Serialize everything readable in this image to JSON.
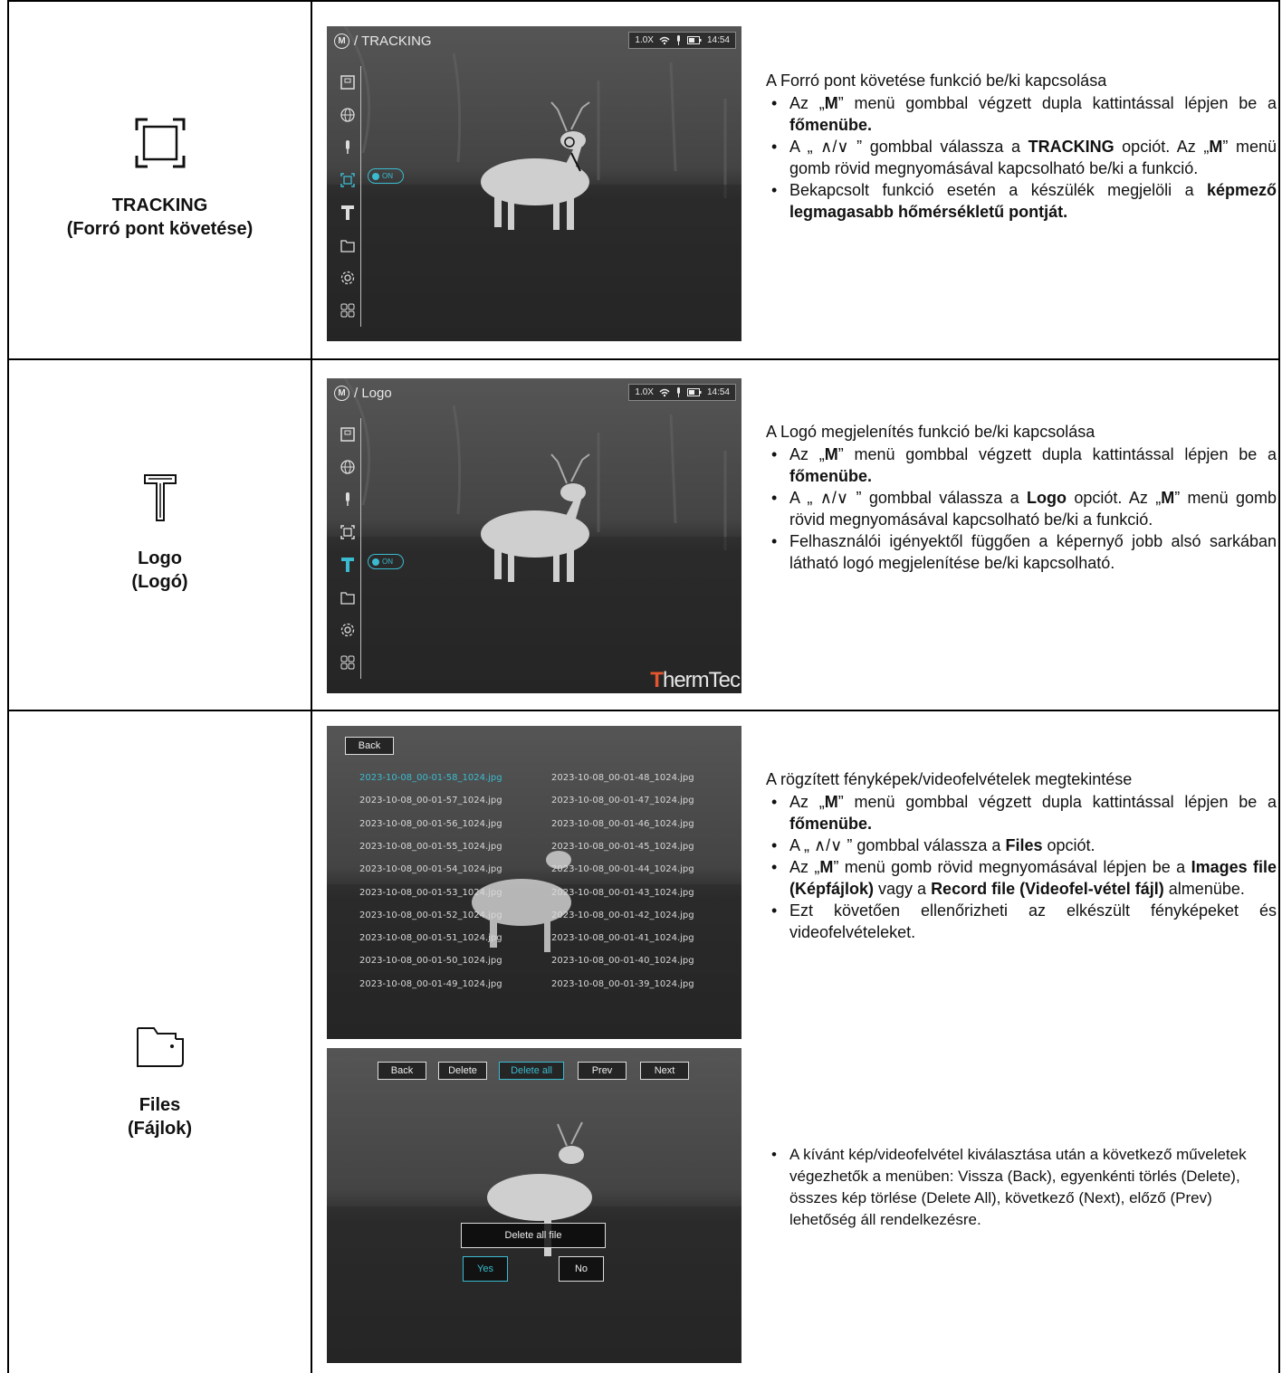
{
  "colors": {
    "accent": "#3bbbd0",
    "border": "#000000"
  },
  "rows": [
    {
      "icon": "tracking-icon",
      "label_line1": "TRACKING",
      "label_line2": "(Forró pont követése)",
      "screen": {
        "title": "/ TRACKING",
        "m_glyph": "M",
        "zoom": "1.0X",
        "time": "14:54",
        "toggle": "ON"
      },
      "heading": "A Forró pont követése funkció be/ki kapcsolása",
      "bullets": [
        [
          "Az „",
          "M",
          "” menü gombbal végzett dupla kattintással lépjen be a ",
          "főmenübe."
        ],
        [
          "A „ ∧/∨ ” gombbal válassza a ",
          "TRACKING",
          " opciót. Az „",
          "M",
          "” menü gomb rövid megnyomásával kapcsolható be/ki a funkció."
        ],
        [
          "Bekapcsolt funkció esetén a készülék megjelöli a ",
          "képmező legmagasabb hőmérsékletű pontját."
        ]
      ]
    },
    {
      "icon": "logo-icon",
      "label_line1": "Logo",
      "label_line2": "(Logó)",
      "screen": {
        "title": "/ Logo",
        "m_glyph": "M",
        "zoom": "1.0X",
        "time": "14:54",
        "toggle": "ON",
        "watermark_a": "T",
        "watermark_b": "hermTec"
      },
      "heading": "A Logó megjelenítés funkció be/ki kapcsolása",
      "bullets": [
        [
          "Az „",
          "M",
          "” menü gombbal végzett dupla kattintással lépjen be a ",
          "főmenübe."
        ],
        [
          "A „ ∧/∨ ” gombbal válassza a ",
          "Logo",
          " opciót. Az „",
          "M",
          "” menü gomb rövid megnyomásával kapcsolható be/ki a funkció."
        ],
        [
          "Felhasználói igényektől függően a képernyő jobb alsó sarkában látható logó megjelenítése be/ki kapcsolható."
        ]
      ]
    },
    {
      "icon": "folder-icon",
      "label_line1": "Files",
      "label_line2": "(Fájlok)",
      "list_screen": {
        "back": "Back",
        "files_left": [
          "2023-10-08_00-01-58_1024.jpg",
          "2023-10-08_00-01-57_1024.jpg",
          "2023-10-08_00-01-56_1024.jpg",
          "2023-10-08_00-01-55_1024.jpg",
          "2023-10-08_00-01-54_1024.jpg",
          "2023-10-08_00-01-53_1024.jpg",
          "2023-10-08_00-01-52_1024.jpg",
          "2023-10-08_00-01-51_1024.jpg",
          "2023-10-08_00-01-50_1024.jpg",
          "2023-10-08_00-01-49_1024.jpg"
        ],
        "files_right": [
          "2023-10-08_00-01-48_1024.jpg",
          "2023-10-08_00-01-47_1024.jpg",
          "2023-10-08_00-01-46_1024.jpg",
          "2023-10-08_00-01-45_1024.jpg",
          "2023-10-08_00-01-44_1024.jpg",
          "2023-10-08_00-01-43_1024.jpg",
          "2023-10-08_00-01-42_1024.jpg",
          "2023-10-08_00-01-41_1024.jpg",
          "2023-10-08_00-01-40_1024.jpg",
          "2023-10-08_00-01-39_1024.jpg"
        ]
      },
      "action_screen": {
        "back": "Back",
        "delete": "Delete",
        "delete_all": "Delete all",
        "prev": "Prev",
        "next": "Next",
        "dialog": "Delete all file",
        "yes": "Yes",
        "no": "No"
      },
      "heading": "A rögzített fényképek/videofelvételek megtekintése",
      "bullets": [
        [
          "Az „",
          "M",
          "” menü gombbal végzett dupla kattintással lépjen be a ",
          "főmenübe."
        ],
        [
          "A „ ∧/∨ ” gombbal válassza a ",
          "Files",
          " opciót."
        ],
        [
          "Az „",
          "M",
          "” menü gomb rövid megnyomásával lépjen be a ",
          "Images file (Képfájlok)",
          " vagy a ",
          "Record file (Videofel-vétel fájl)",
          " almenübe."
        ],
        [
          "Ezt követően ellenőrizheti az elkészült fényképeket és videofelvételeket."
        ]
      ],
      "bullet2": "A kívánt kép/videofelvétel kiválasztása után a következő műveletek végezhetők a menüben: Vissza (Back), egyenkénti törlés (Delete), összes kép törlése (Delete All), következő (Next), előző (Prev) lehetőség áll rendelkezésre."
    }
  ]
}
